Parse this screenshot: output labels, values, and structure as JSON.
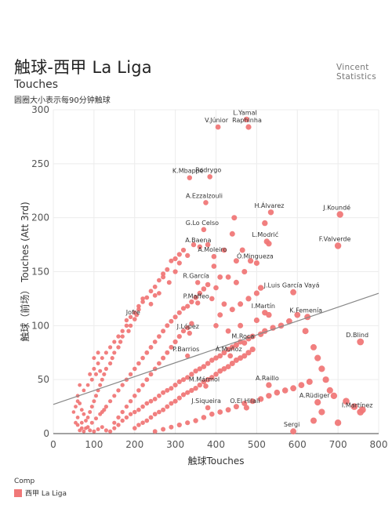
{
  "header": {
    "title": "触球-西甲 La Liga",
    "subtitle": "Touches",
    "note": "圆圈大小表示每90分钟触球",
    "brand_line1": "Vincent",
    "brand_line2": "Statistics"
  },
  "legend": {
    "title": "Comp",
    "item": "西甲 La Liga"
  },
  "chart_data": {
    "type": "scatter",
    "xlabel": "触球Touches",
    "ylabel": "触球（前场） Touches (Att 3rd)",
    "xlim": [
      0,
      800
    ],
    "ylim": [
      0,
      300
    ],
    "xticks": [
      0,
      100,
      200,
      300,
      400,
      500,
      600,
      700,
      800
    ],
    "yticks": [
      0,
      50,
      100,
      150,
      200,
      250,
      300
    ],
    "color": "#f07878",
    "trendline": {
      "x": [
        0,
        800
      ],
      "y": [
        27,
        130
      ]
    },
    "labeled_points": [
      {
        "name": "L.Yamal",
        "x": 475,
        "y": 291
      },
      {
        "name": "V.Júnior",
        "x": 405,
        "y": 284
      },
      {
        "name": "Raphinha",
        "x": 480,
        "y": 284
      },
      {
        "name": "Rodrygo",
        "x": 385,
        "y": 238
      },
      {
        "name": "K.Mbappé",
        "x": 335,
        "y": 237
      },
      {
        "name": "A.Ezzalzouli",
        "x": 375,
        "y": 214
      },
      {
        "name": "H.Álvarez",
        "x": 535,
        "y": 205
      },
      {
        "name": "J.Koundé",
        "x": 705,
        "y": 203
      },
      {
        "name": "G.Lo Celso",
        "x": 370,
        "y": 189
      },
      {
        "name": "L.Modrić",
        "x": 525,
        "y": 178
      },
      {
        "name": "F.Valverde",
        "x": 700,
        "y": 174
      },
      {
        "name": "A.Baena",
        "x": 360,
        "y": 173
      },
      {
        "name": "A.Moleiro",
        "x": 395,
        "y": 164
      },
      {
        "name": "Ó.Mingueza",
        "x": 500,
        "y": 158
      },
      {
        "name": "R.García",
        "x": 355,
        "y": 140
      },
      {
        "name": "J.Luis García Vayá",
        "x": 590,
        "y": 131
      },
      {
        "name": "P.Maffeo",
        "x": 355,
        "y": 121
      },
      {
        "name": "I.Martín",
        "x": 520,
        "y": 112
      },
      {
        "name": "K.Femenía",
        "x": 625,
        "y": 108
      },
      {
        "name": "Jofre",
        "x": 200,
        "y": 106
      },
      {
        "name": "J.López",
        "x": 335,
        "y": 93
      },
      {
        "name": "D.Blind",
        "x": 755,
        "y": 85
      },
      {
        "name": "M.Roca",
        "x": 470,
        "y": 84
      },
      {
        "name": "P.Barrios",
        "x": 330,
        "y": 72
      },
      {
        "name": "Á.Muñoz",
        "x": 435,
        "y": 72
      },
      {
        "name": "A.Raillo",
        "x": 530,
        "y": 45
      },
      {
        "name": "M.Mármol",
        "x": 375,
        "y": 44
      },
      {
        "name": "A.Rüdiger",
        "x": 650,
        "y": 29
      },
      {
        "name": "J.Siqueira",
        "x": 380,
        "y": 24
      },
      {
        "name": "O.El Hilali",
        "x": 475,
        "y": 24
      },
      {
        "name": "I.Martínez",
        "x": 755,
        "y": 20
      },
      {
        "name": "Sergi",
        "x": 590,
        "y": 2
      }
    ],
    "points": [
      [
        475,
        291
      ],
      [
        405,
        284
      ],
      [
        480,
        284
      ],
      [
        385,
        238
      ],
      [
        335,
        237
      ],
      [
        375,
        214
      ],
      [
        535,
        205
      ],
      [
        520,
        195
      ],
      [
        705,
        203
      ],
      [
        370,
        189
      ],
      [
        525,
        178
      ],
      [
        530,
        176
      ],
      [
        700,
        174
      ],
      [
        360,
        173
      ],
      [
        345,
        175
      ],
      [
        395,
        164
      ],
      [
        500,
        158
      ],
      [
        485,
        160
      ],
      [
        470,
        150
      ],
      [
        355,
        140
      ],
      [
        590,
        131
      ],
      [
        355,
        121
      ],
      [
        520,
        112
      ],
      [
        625,
        108
      ],
      [
        200,
        106
      ],
      [
        335,
        93
      ],
      [
        755,
        85
      ],
      [
        470,
        84
      ],
      [
        330,
        72
      ],
      [
        435,
        72
      ],
      [
        530,
        45
      ],
      [
        375,
        44
      ],
      [
        650,
        29
      ],
      [
        660,
        20
      ],
      [
        380,
        24
      ],
      [
        475,
        24
      ],
      [
        755,
        20
      ],
      [
        590,
        2
      ],
      [
        640,
        12
      ],
      [
        700,
        10
      ],
      [
        445,
        200
      ],
      [
        440,
        185
      ],
      [
        420,
        170
      ],
      [
        380,
        175
      ],
      [
        330,
        165
      ],
      [
        310,
        158
      ],
      [
        300,
        150
      ],
      [
        285,
        140
      ],
      [
        270,
        145
      ],
      [
        260,
        130
      ],
      [
        250,
        128
      ],
      [
        240,
        120
      ],
      [
        220,
        125
      ],
      [
        210,
        115
      ],
      [
        205,
        110
      ],
      [
        190,
        100
      ],
      [
        185,
        95
      ],
      [
        180,
        105
      ],
      [
        170,
        90
      ],
      [
        165,
        85
      ],
      [
        160,
        80
      ],
      [
        150,
        75
      ],
      [
        145,
        70
      ],
      [
        140,
        65
      ],
      [
        130,
        60
      ],
      [
        125,
        55
      ],
      [
        120,
        50
      ],
      [
        115,
        45
      ],
      [
        110,
        40
      ],
      [
        105,
        35
      ],
      [
        100,
        30
      ],
      [
        95,
        25
      ],
      [
        90,
        20
      ],
      [
        85,
        15
      ],
      [
        80,
        12
      ],
      [
        75,
        18
      ],
      [
        70,
        22
      ],
      [
        65,
        28
      ],
      [
        60,
        30
      ],
      [
        55,
        25
      ],
      [
        50,
        20
      ],
      [
        60,
        15
      ],
      [
        70,
        10
      ],
      [
        80,
        5
      ],
      [
        90,
        3
      ],
      [
        100,
        2
      ],
      [
        110,
        4
      ],
      [
        120,
        6
      ],
      [
        130,
        3
      ],
      [
        140,
        2
      ],
      [
        150,
        5
      ],
      [
        160,
        8
      ],
      [
        170,
        12
      ],
      [
        180,
        15
      ],
      [
        190,
        18
      ],
      [
        200,
        20
      ],
      [
        210,
        22
      ],
      [
        220,
        25
      ],
      [
        230,
        28
      ],
      [
        240,
        30
      ],
      [
        250,
        32
      ],
      [
        260,
        35
      ],
      [
        270,
        38
      ],
      [
        280,
        40
      ],
      [
        290,
        42
      ],
      [
        300,
        45
      ],
      [
        310,
        48
      ],
      [
        320,
        50
      ],
      [
        330,
        52
      ],
      [
        340,
        55
      ],
      [
        350,
        58
      ],
      [
        360,
        60
      ],
      [
        370,
        62
      ],
      [
        380,
        65
      ],
      [
        390,
        68
      ],
      [
        400,
        70
      ],
      [
        410,
        72
      ],
      [
        420,
        75
      ],
      [
        430,
        78
      ],
      [
        440,
        80
      ],
      [
        450,
        82
      ],
      [
        460,
        85
      ],
      [
        480,
        88
      ],
      [
        490,
        90
      ],
      [
        510,
        92
      ],
      [
        520,
        95
      ],
      [
        540,
        98
      ],
      [
        560,
        100
      ],
      [
        580,
        104
      ],
      [
        600,
        110
      ],
      [
        620,
        95
      ],
      [
        640,
        80
      ],
      [
        650,
        70
      ],
      [
        660,
        60
      ],
      [
        670,
        50
      ],
      [
        680,
        40
      ],
      [
        690,
        35
      ],
      [
        720,
        30
      ],
      [
        740,
        25
      ],
      [
        760,
        22
      ],
      [
        100,
        60
      ],
      [
        110,
        65
      ],
      [
        120,
        70
      ],
      [
        130,
        75
      ],
      [
        140,
        80
      ],
      [
        150,
        85
      ],
      [
        160,
        90
      ],
      [
        170,
        95
      ],
      [
        180,
        100
      ],
      [
        190,
        108
      ],
      [
        200,
        112
      ],
      [
        210,
        118
      ],
      [
        220,
        122
      ],
      [
        230,
        126
      ],
      [
        240,
        132
      ],
      [
        250,
        136
      ],
      [
        260,
        142
      ],
      [
        270,
        148
      ],
      [
        280,
        152
      ],
      [
        290,
        160
      ],
      [
        300,
        162
      ],
      [
        310,
        166
      ],
      [
        320,
        170
      ],
      [
        120,
        20
      ],
      [
        130,
        25
      ],
      [
        140,
        30
      ],
      [
        150,
        35
      ],
      [
        160,
        40
      ],
      [
        170,
        45
      ],
      [
        180,
        50
      ],
      [
        190,
        55
      ],
      [
        200,
        60
      ],
      [
        210,
        65
      ],
      [
        220,
        70
      ],
      [
        230,
        75
      ],
      [
        240,
        80
      ],
      [
        250,
        85
      ],
      [
        260,
        90
      ],
      [
        270,
        95
      ],
      [
        280,
        100
      ],
      [
        290,
        104
      ],
      [
        300,
        108
      ],
      [
        310,
        112
      ],
      [
        320,
        116
      ],
      [
        330,
        118
      ],
      [
        340,
        122
      ],
      [
        350,
        126
      ],
      [
        360,
        130
      ],
      [
        370,
        134
      ],
      [
        380,
        138
      ],
      [
        150,
        10
      ],
      [
        160,
        15
      ],
      [
        170,
        20
      ],
      [
        180,
        25
      ],
      [
        190,
        30
      ],
      [
        200,
        35
      ],
      [
        210,
        40
      ],
      [
        220,
        45
      ],
      [
        230,
        50
      ],
      [
        240,
        55
      ],
      [
        250,
        60
      ],
      [
        260,
        65
      ],
      [
        270,
        70
      ],
      [
        280,
        75
      ],
      [
        290,
        80
      ],
      [
        300,
        85
      ],
      [
        310,
        90
      ],
      [
        320,
        95
      ],
      [
        330,
        98
      ],
      [
        340,
        102
      ],
      [
        200,
        5
      ],
      [
        210,
        8
      ],
      [
        220,
        10
      ],
      [
        230,
        12
      ],
      [
        240,
        15
      ],
      [
        250,
        18
      ],
      [
        260,
        20
      ],
      [
        270,
        22
      ],
      [
        280,
        25
      ],
      [
        290,
        28
      ],
      [
        300,
        30
      ],
      [
        310,
        33
      ],
      [
        320,
        36
      ],
      [
        330,
        38
      ],
      [
        340,
        40
      ],
      [
        350,
        42
      ],
      [
        360,
        45
      ],
      [
        370,
        48
      ],
      [
        380,
        50
      ],
      [
        390,
        52
      ],
      [
        400,
        55
      ],
      [
        410,
        58
      ],
      [
        420,
        60
      ],
      [
        430,
        62
      ],
      [
        440,
        65
      ],
      [
        450,
        68
      ],
      [
        460,
        70
      ],
      [
        470,
        72
      ],
      [
        480,
        75
      ],
      [
        490,
        78
      ],
      [
        250,
        2
      ],
      [
        270,
        4
      ],
      [
        290,
        6
      ],
      [
        310,
        8
      ],
      [
        330,
        10
      ],
      [
        350,
        12
      ],
      [
        370,
        15
      ],
      [
        390,
        18
      ],
      [
        410,
        20
      ],
      [
        430,
        22
      ],
      [
        450,
        25
      ],
      [
        470,
        28
      ],
      [
        490,
        30
      ],
      [
        510,
        32
      ],
      [
        530,
        35
      ],
      [
        550,
        38
      ],
      [
        570,
        40
      ],
      [
        590,
        42
      ],
      [
        610,
        45
      ],
      [
        630,
        48
      ],
      [
        440,
        115
      ],
      [
        460,
        120
      ],
      [
        480,
        125
      ],
      [
        500,
        130
      ],
      [
        510,
        135
      ],
      [
        450,
        140
      ],
      [
        430,
        145
      ],
      [
        460,
        100
      ],
      [
        500,
        105
      ],
      [
        530,
        110
      ],
      [
        430,
        95
      ],
      [
        400,
        100
      ],
      [
        410,
        110
      ],
      [
        420,
        120
      ],
      [
        390,
        125
      ],
      [
        400,
        135
      ],
      [
        410,
        145
      ],
      [
        395,
        155
      ],
      [
        450,
        160
      ],
      [
        465,
        170
      ],
      [
        75,
        40
      ],
      [
        85,
        45
      ],
      [
        95,
        50
      ],
      [
        105,
        55
      ],
      [
        115,
        58
      ],
      [
        60,
        35
      ],
      [
        65,
        45
      ],
      [
        90,
        55
      ],
      [
        100,
        70
      ],
      [
        110,
        75
      ],
      [
        60,
        8
      ],
      [
        70,
        5
      ],
      [
        55,
        10
      ],
      [
        65,
        3
      ],
      [
        75,
        2
      ],
      [
        85,
        6
      ],
      [
        95,
        10
      ],
      [
        105,
        14
      ],
      [
        115,
        18
      ],
      [
        125,
        22
      ]
    ]
  }
}
